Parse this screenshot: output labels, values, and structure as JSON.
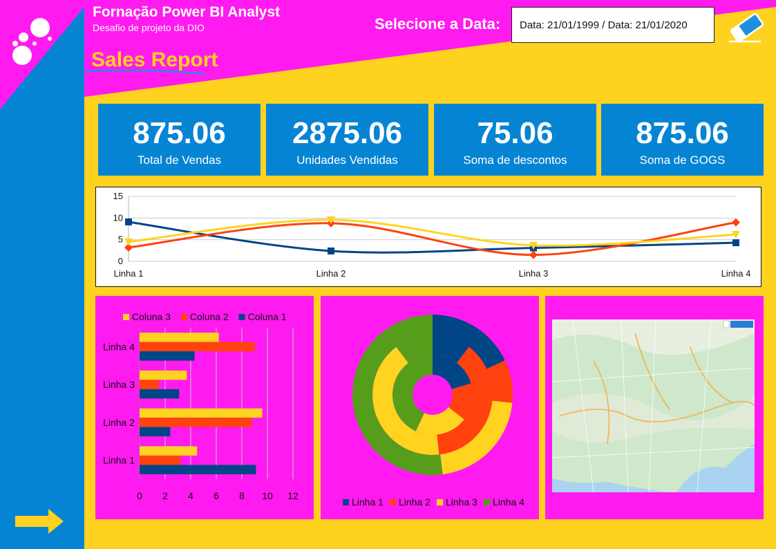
{
  "header": {
    "title": "Fornação Power BI Analyst",
    "subtitle": "Desafio de projeto da DIO",
    "report_title": "Sales Report",
    "date_label": "Selecione a Data:",
    "date_value": "Data: 21/01/1999 / Data: 21/01/2020"
  },
  "kpis": [
    {
      "value": "875.06",
      "label": "Total de Vendas"
    },
    {
      "value": "2875.06",
      "label": "Unidades Vendidas"
    },
    {
      "value": "75.06",
      "label": "Soma de descontos"
    },
    {
      "value": "875.06",
      "label": "Soma de GOGS"
    }
  ],
  "colors": {
    "magenta": "#ff1af0",
    "yellow": "#ffd21f",
    "blue": "#0684d4",
    "navy": "#004586",
    "orange": "#ff420e",
    "gold": "#ffd320",
    "green": "#579d1c"
  },
  "icons": {
    "logo": "dots-logo-icon",
    "eraser": "eraser-icon",
    "arrow": "arrow-right-icon"
  },
  "chart_data": [
    {
      "type": "line",
      "categories": [
        "Linha 1",
        "Linha 2",
        "Linha 3",
        "Linha 4"
      ],
      "series": [
        {
          "values": [
            9.1,
            2.4,
            3.1,
            4.3
          ],
          "color": "#004586"
        },
        {
          "values": [
            3.2,
            8.8,
            1.5,
            9.0
          ],
          "color": "#ff420e"
        },
        {
          "values": [
            4.5,
            9.6,
            3.7,
            6.2
          ],
          "color": "#ffd320"
        }
      ],
      "ylim": [
        0,
        15
      ],
      "yticks": [
        "0",
        "5",
        "10",
        "15"
      ],
      "grid": true
    },
    {
      "type": "bar",
      "orientation": "horizontal",
      "categories": [
        "Linha 1",
        "Linha 2",
        "Linha 3",
        "Linha 4"
      ],
      "series": [
        {
          "name": "Coluna 1",
          "values": [
            9.1,
            2.4,
            3.1,
            4.3
          ],
          "color": "#004586"
        },
        {
          "name": "Coluna 2",
          "values": [
            3.2,
            8.8,
            1.5,
            9.0
          ],
          "color": "#ff420e"
        },
        {
          "name": "Coluna 3",
          "values": [
            4.5,
            9.6,
            3.7,
            6.2
          ],
          "color": "#ffd320"
        }
      ],
      "legend_order": [
        "Coluna 3",
        "Coluna 2",
        "Coluna 1"
      ],
      "xlim": [
        0,
        12
      ],
      "xticks": [
        "0",
        "2",
        "4",
        "6",
        "8",
        "10",
        "12"
      ],
      "legend": "top",
      "grid": true
    },
    {
      "type": "pie",
      "variant": "donut-rings",
      "legend": [
        "Linha 1",
        "Linha 2",
        "Linha 3",
        "Linha 4"
      ],
      "colors": [
        "#004586",
        "#ff420e",
        "#ffd320",
        "#579d1c"
      ],
      "rings": [
        [
          4.3,
          3.2,
          4.5,
          9.1
        ],
        [
          2.4,
          8.8,
          9.6,
          2.4
        ],
        [
          3.1,
          1.5,
          3.7,
          9.0
        ]
      ],
      "legend_placement": "bottom"
    }
  ]
}
